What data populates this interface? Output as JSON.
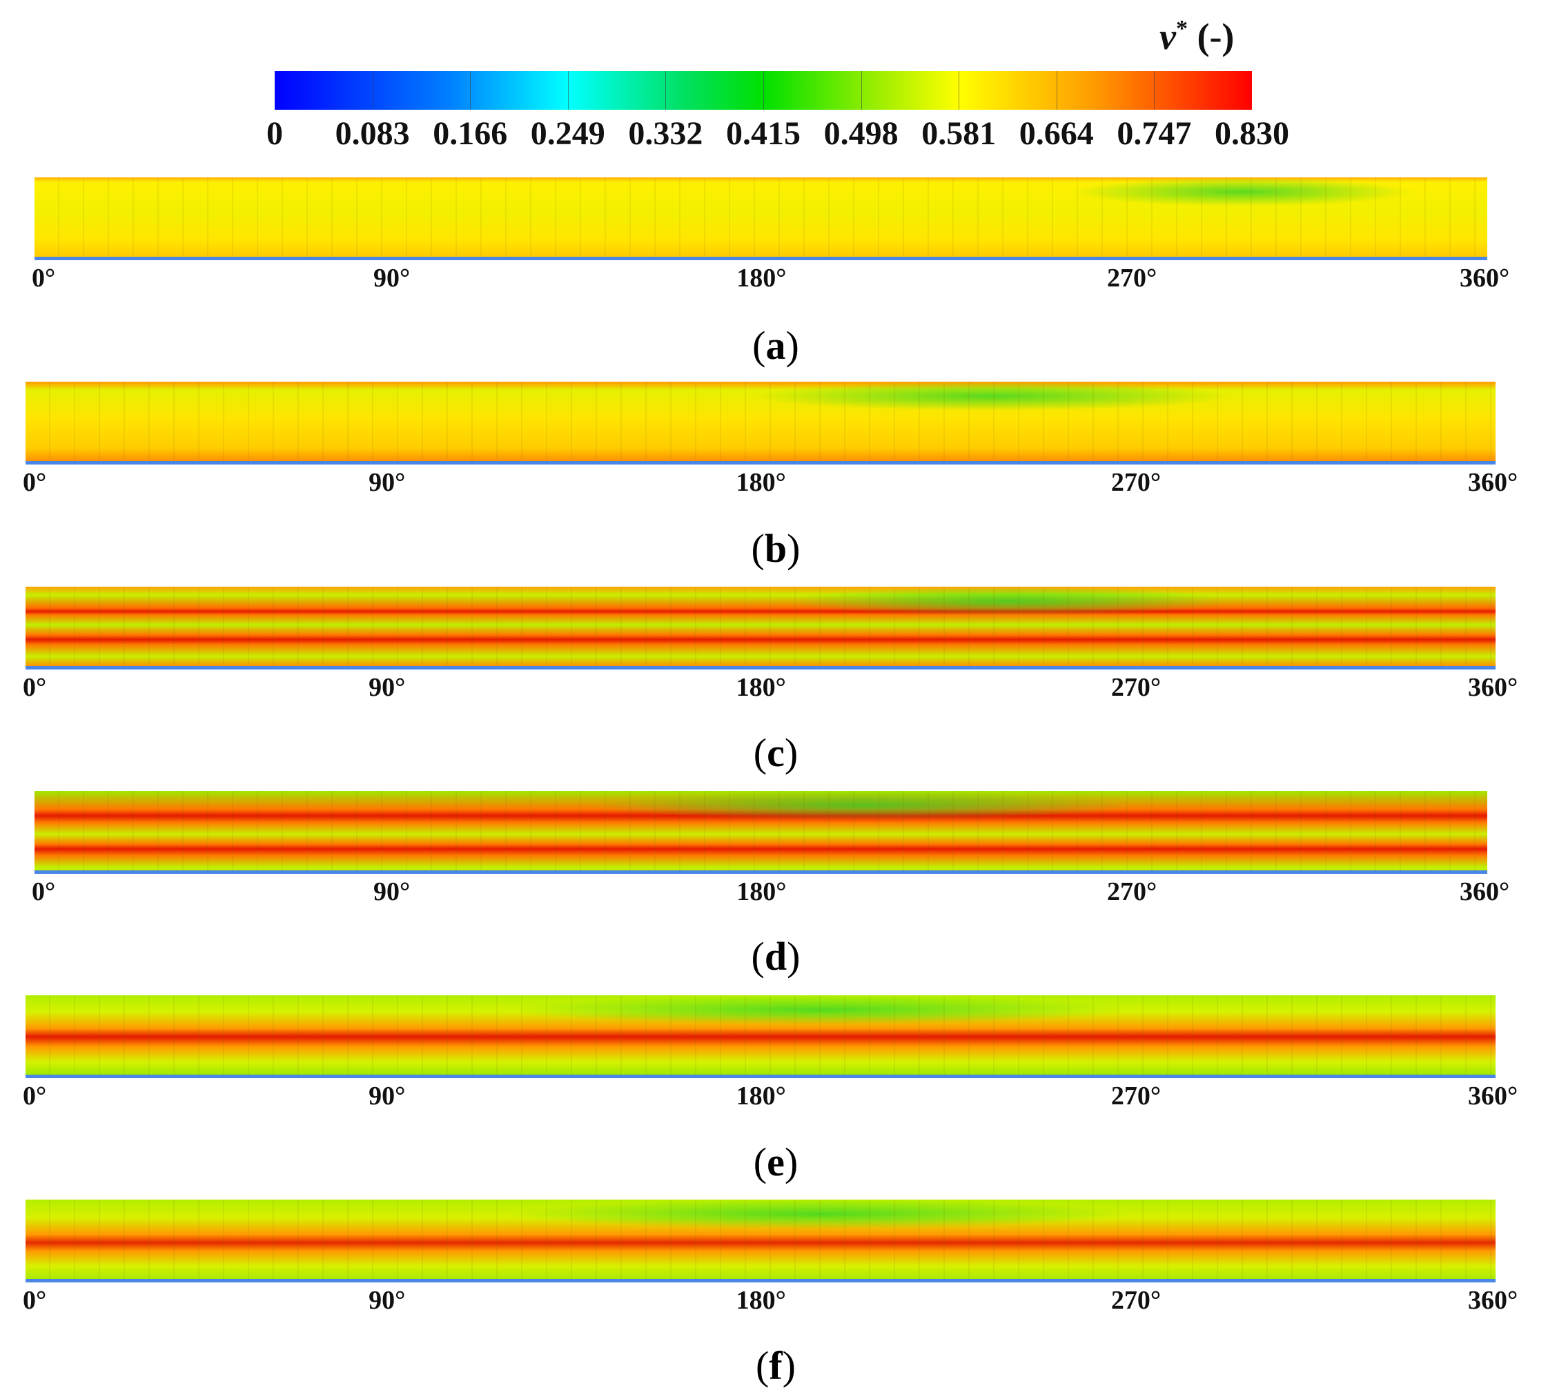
{
  "colorbar": {
    "title_var": "v",
    "title_sup": "*",
    "title_unit": "(-)",
    "labels": [
      "0",
      "0.083",
      "0.166",
      "0.249",
      "0.332",
      "0.415",
      "0.498",
      "0.581",
      "0.664",
      "0.747",
      "0.830"
    ],
    "colors": [
      "#0000ff",
      "#00ffff",
      "#00e000",
      "#ffff00",
      "#ff0000"
    ]
  },
  "angle_labels": [
    "0°",
    "90°",
    "180°",
    "270°",
    "360°"
  ],
  "panels": [
    {
      "caption_open": "(",
      "caption_letter": "a",
      "caption_close": ")"
    },
    {
      "caption_open": "(",
      "caption_letter": "b",
      "caption_close": ")"
    },
    {
      "caption_open": "(",
      "caption_letter": "c",
      "caption_close": ")"
    },
    {
      "caption_open": "(",
      "caption_letter": "d",
      "caption_close": ")"
    },
    {
      "caption_open": "(",
      "caption_letter": "e",
      "caption_close": ")"
    },
    {
      "caption_open": "(",
      "caption_letter": "f",
      "caption_close": ")"
    }
  ]
}
